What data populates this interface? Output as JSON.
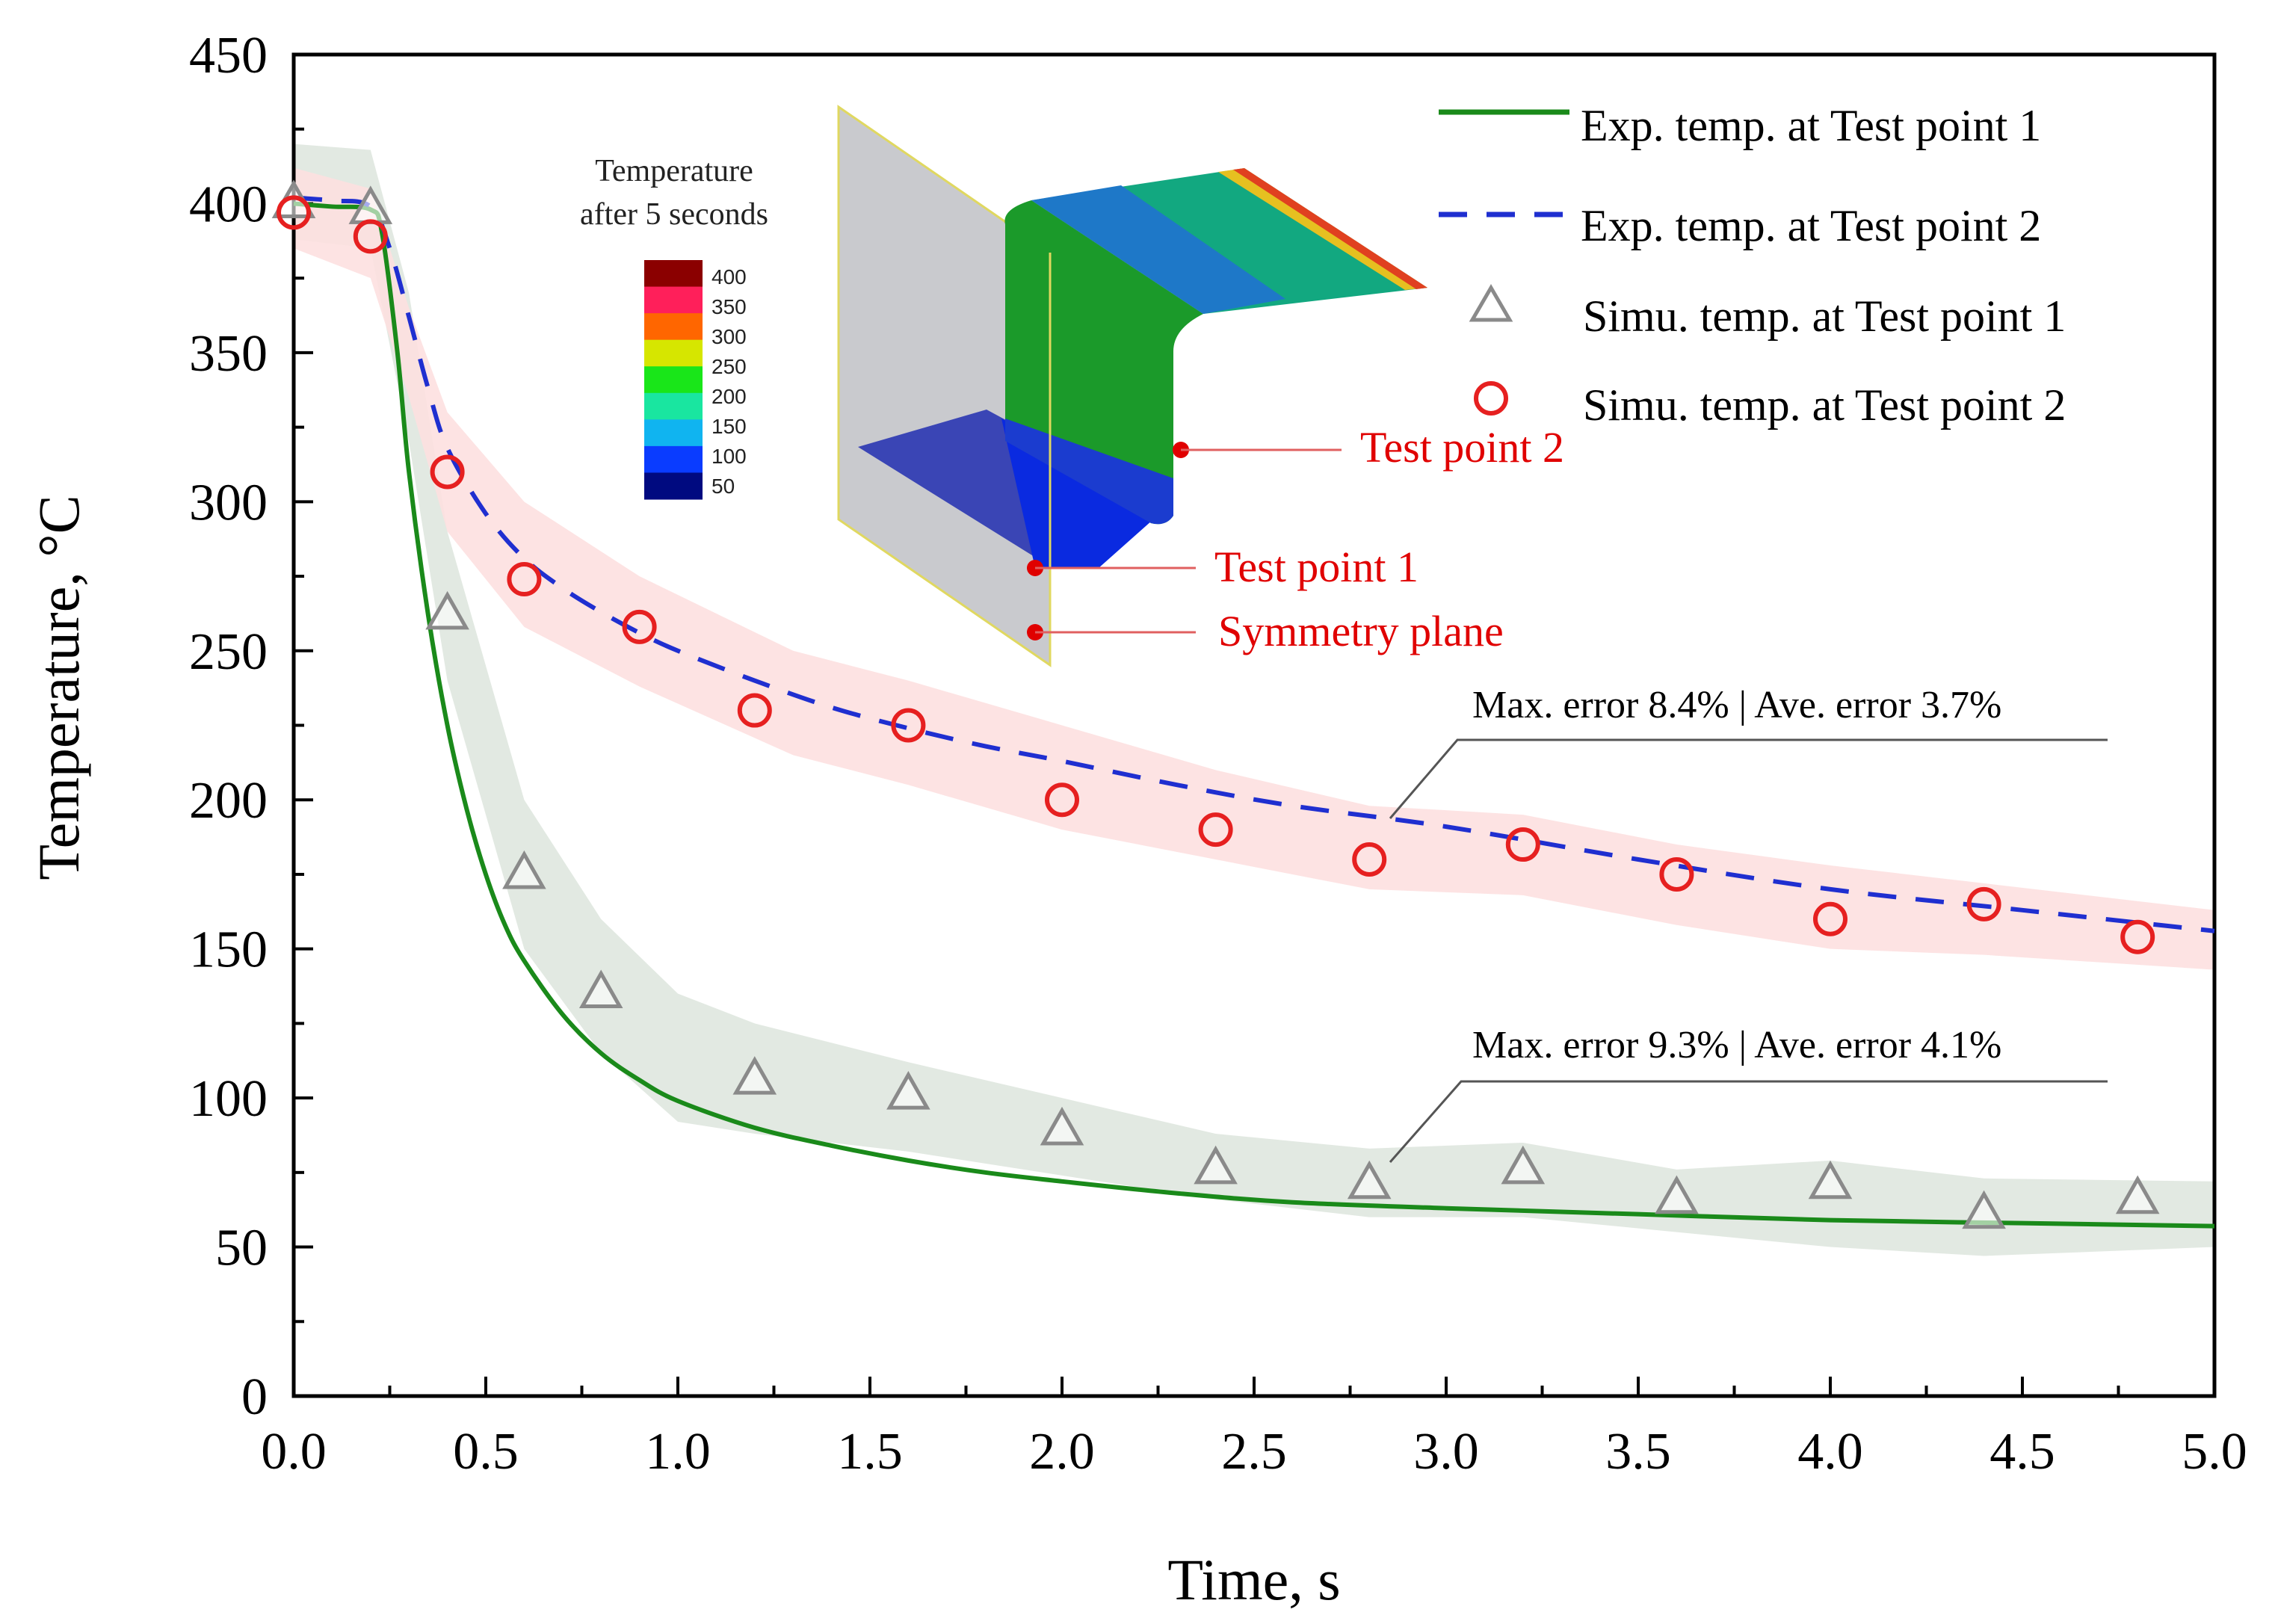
{
  "chart_data": {
    "type": "line",
    "title": "",
    "xlabel": "Time, s",
    "ylabel": "Temperature, °C",
    "xlim": [
      0,
      5
    ],
    "ylim": [
      0,
      450
    ],
    "x_ticks": [
      "0.0",
      "0.5",
      "1.0",
      "1.5",
      "2.0",
      "2.5",
      "3.0",
      "3.5",
      "4.0",
      "4.5",
      "5.0"
    ],
    "y_ticks": [
      "0",
      "50",
      "100",
      "150",
      "200",
      "250",
      "300",
      "350",
      "400",
      "450"
    ],
    "grid": false,
    "legend_position": "top-right",
    "legend": [
      "Exp. temp. at Test point 1",
      "Exp. temp. at Test point 2",
      "Simu. temp. at Test point 1",
      "Simu. temp. at Test point 2"
    ],
    "series": [
      {
        "name": "Exp. temp. at Test point 1",
        "style": "solid-line",
        "color": "#1a8a1a",
        "x": [
          0.0,
          0.1,
          0.2,
          0.23,
          0.27,
          0.3,
          0.35,
          0.4,
          0.45,
          0.5,
          0.55,
          0.6,
          0.7,
          0.8,
          0.9,
          1.0,
          1.2,
          1.4,
          1.6,
          1.8,
          2.0,
          2.3,
          2.6,
          3.0,
          3.5,
          4.0,
          4.5,
          5.0
        ],
        "y": [
          400,
          399,
          398,
          390,
          350,
          310,
          262,
          225,
          197,
          175,
          158,
          146,
          128,
          115,
          106,
          99,
          90,
          84,
          79,
          75,
          72,
          68,
          65,
          63,
          61,
          59,
          58,
          57
        ]
      },
      {
        "name": "Exp. temp. at Test point 2",
        "style": "dashed-line",
        "color": "#1f2fd0",
        "x": [
          0.0,
          0.1,
          0.2,
          0.25,
          0.3,
          0.35,
          0.4,
          0.5,
          0.6,
          0.7,
          0.8,
          0.9,
          1.0,
          1.2,
          1.4,
          1.6,
          1.8,
          2.0,
          2.3,
          2.6,
          3.0,
          3.5,
          4.0,
          4.5,
          5.0
        ],
        "y": [
          402,
          401,
          399,
          385,
          362,
          338,
          318,
          296,
          281,
          271,
          263,
          256,
          250,
          240,
          231,
          224,
          218,
          213,
          205,
          198,
          191,
          180,
          170,
          163,
          156
        ]
      },
      {
        "name": "Simu. temp. at Test point 1",
        "style": "triangle-markers",
        "color": "#8a8a8a",
        "x": [
          0.0,
          0.2,
          0.4,
          0.6,
          0.8,
          1.2,
          1.6,
          2.0,
          2.4,
          2.8,
          3.2,
          3.6,
          4.0,
          4.4,
          4.8
        ],
        "y": [
          400,
          398,
          262,
          175,
          135,
          106,
          101,
          89,
          76,
          71,
          76,
          66,
          71,
          61,
          66
        ]
      },
      {
        "name": "Simu. temp. at Test point 2",
        "style": "circle-markers",
        "color": "#e62020",
        "x": [
          0.0,
          0.2,
          0.4,
          0.6,
          0.9,
          1.2,
          1.6,
          2.0,
          2.4,
          2.8,
          3.2,
          3.6,
          4.0,
          4.4,
          4.8
        ],
        "y": [
          397,
          389,
          310,
          274,
          258,
          230,
          225,
          200,
          190,
          180,
          185,
          175,
          160,
          165,
          154
        ]
      }
    ],
    "bands": [
      {
        "name": "Error band Test point 1",
        "color": "#dfe7df",
        "x": [
          0.0,
          0.2,
          0.3,
          0.4,
          0.6,
          0.8,
          1.0,
          1.2,
          1.6,
          2.0,
          2.4,
          2.8,
          3.2,
          3.6,
          4.0,
          4.4,
          5.0
        ],
        "upper": [
          420,
          418,
          370,
          290,
          200,
          160,
          135,
          125,
          112,
          100,
          88,
          83,
          85,
          76,
          79,
          73,
          72
        ],
        "lower": [
          388,
          385,
          320,
          240,
          150,
          115,
          92,
          88,
          82,
          74,
          66,
          60,
          60,
          55,
          50,
          47,
          50
        ]
      },
      {
        "name": "Error band Test point 2",
        "color": "#fde0e0",
        "x": [
          0.0,
          0.2,
          0.3,
          0.4,
          0.6,
          0.9,
          1.3,
          1.6,
          2.0,
          2.4,
          2.8,
          3.2,
          3.6,
          4.0,
          4.4,
          5.0
        ],
        "upper": [
          412,
          405,
          365,
          330,
          300,
          275,
          250,
          240,
          225,
          210,
          198,
          195,
          185,
          178,
          172,
          163
        ],
        "lower": [
          385,
          375,
          335,
          290,
          258,
          238,
          215,
          205,
          190,
          180,
          170,
          168,
          158,
          150,
          148,
          143
        ]
      }
    ],
    "annotations": [
      {
        "name": "error-tp2",
        "text": "Max. error 8.4% | Ave. error 3.7%"
      },
      {
        "name": "error-tp1",
        "text": "Max. error 9.3% | Ave. error 4.1%"
      }
    ],
    "inset": {
      "colorbar_title_line1": "Temperature",
      "colorbar_title_line2": "after 5 seconds",
      "colorbar_levels": [
        "400",
        "350",
        "300",
        "250",
        "200",
        "150",
        "100",
        "50"
      ],
      "colorbar_colors": [
        "#8b0000",
        "#ff1f5a",
        "#ff6600",
        "#d6e600",
        "#19e619",
        "#19e6a0",
        "#10b4f0",
        "#0a3cff",
        "#000a80"
      ],
      "labels": {
        "test_point_2": "Test point 2",
        "test_point_1": "Test point 1",
        "symmetry_plane": "Symmetry plane"
      }
    }
  }
}
